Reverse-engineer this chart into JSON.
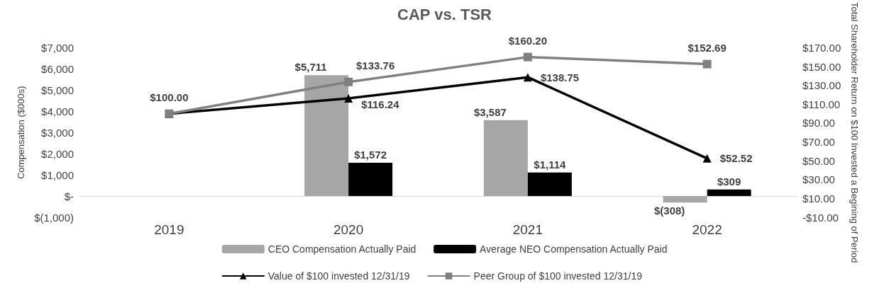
{
  "chart_data": {
    "type": "bar",
    "title": "CAP vs. TSR",
    "ylabel": "Compensation ($000s)",
    "y2label": "Total Shareholder Return on $100 Invested a Begining of Period",
    "categories": [
      "2019",
      "2020",
      "2021",
      "2022"
    ],
    "series": [
      {
        "name": "CEO Compensation Actually Paid",
        "color": "#a6a6a6",
        "values": [
          null,
          5711,
          3587,
          -308
        ],
        "value_labels": [
          null,
          "$5,711",
          "$3,587",
          "$(308)"
        ]
      },
      {
        "name": "Average NEO Compensation Actually Paid",
        "color": "#000000",
        "values": [
          null,
          1572,
          1114,
          309
        ],
        "value_labels": [
          null,
          "$1,572",
          "$1,114",
          "$309"
        ]
      },
      {
        "name": "Value of $100 invested 12/31/19",
        "type": "line",
        "axis": "y2",
        "marker": "triangle",
        "color": "#000000",
        "values": [
          100,
          116.24,
          138.75,
          52.52
        ],
        "value_labels": [
          null,
          "$116.24",
          "$138.75",
          "$52.52"
        ]
      },
      {
        "name": "Peer Group of $100 invested 12/31/19",
        "type": "line",
        "axis": "y2",
        "marker": "square",
        "color": "#808080",
        "values": [
          100,
          133.76,
          160.2,
          152.69
        ],
        "value_labels": [
          "$100.00",
          "$133.76",
          "$160.20",
          "$152.69"
        ]
      }
    ],
    "ylim": [
      -1000,
      7000
    ],
    "yticks": [
      {
        "value": -1000,
        "label": "$(1,000)"
      },
      {
        "value": 0,
        "label": "$-"
      },
      {
        "value": 1000,
        "label": "$1,000"
      },
      {
        "value": 2000,
        "label": "$2,000"
      },
      {
        "value": 3000,
        "label": "$3,000"
      },
      {
        "value": 4000,
        "label": "$4,000"
      },
      {
        "value": 5000,
        "label": "$5,000"
      },
      {
        "value": 6000,
        "label": "$6,000"
      },
      {
        "value": 7000,
        "label": "$7,000"
      }
    ],
    "y2lim": [
      -10,
      170
    ],
    "y2ticks": [
      {
        "value": -10,
        "label": "-$10.00"
      },
      {
        "value": 10,
        "label": "$10.00"
      },
      {
        "value": 30,
        "label": "$30.00"
      },
      {
        "value": 50,
        "label": "$50.00"
      },
      {
        "value": 70,
        "label": "$70.00"
      },
      {
        "value": 90,
        "label": "$90.00"
      },
      {
        "value": 110,
        "label": "$110.00"
      },
      {
        "value": 130,
        "label": "$130.00"
      },
      {
        "value": 150,
        "label": "$150.00"
      },
      {
        "value": 170,
        "label": "$170.00"
      }
    ],
    "legend": "bottom",
    "grid": false
  }
}
